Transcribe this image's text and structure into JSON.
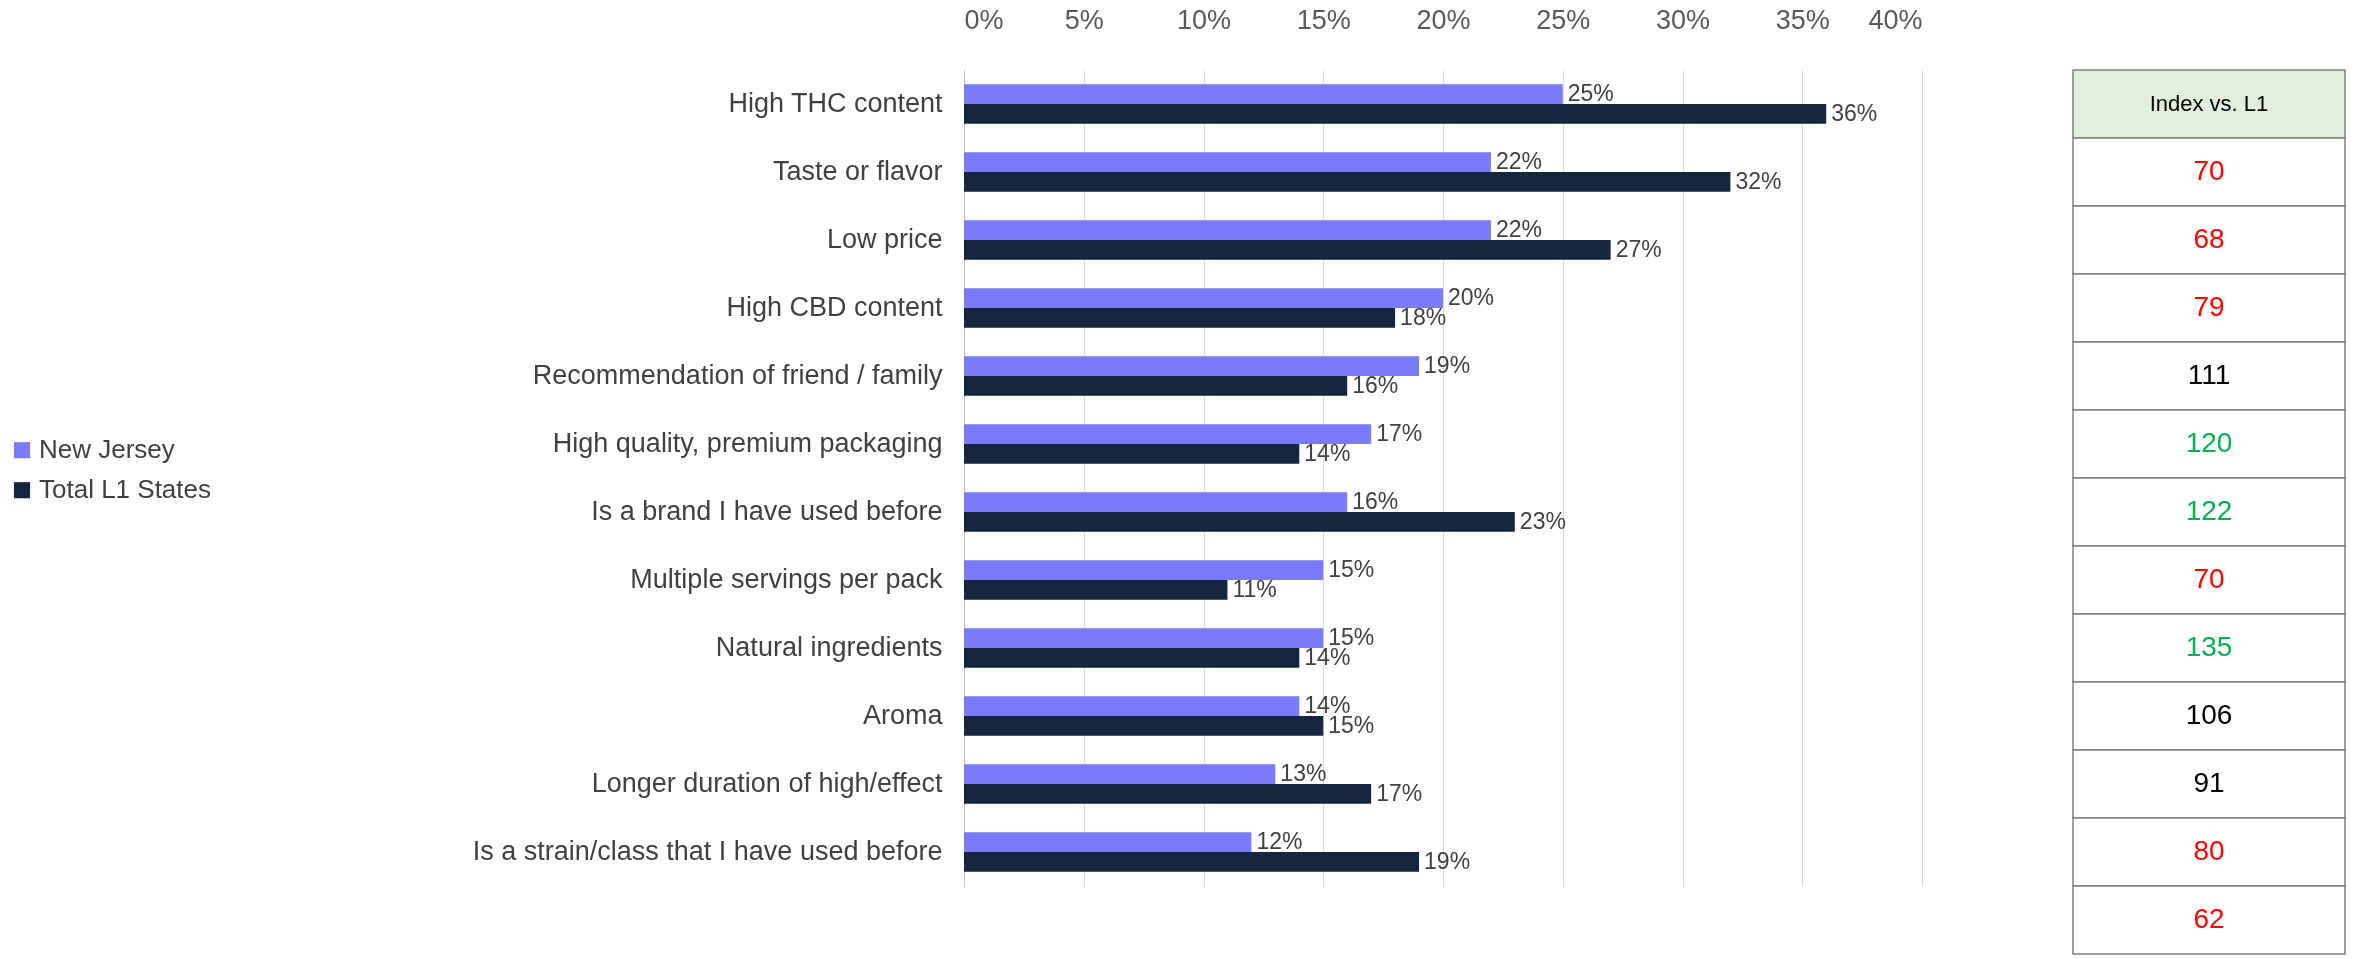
{
  "chart_data": [
    {
      "type": "bar",
      "orientation": "horizontal",
      "categories": [
        "High THC content",
        "Taste or flavor",
        "Low price",
        "High CBD content",
        "Recommendation of friend / family",
        "High quality, premium packaging",
        "Is a brand I have used before",
        "Multiple servings per pack",
        "Natural ingredients",
        "Aroma",
        "Longer duration of high/effect",
        "Is a strain/class that I have used before"
      ],
      "series": [
        {
          "name": "New Jersey",
          "color": "#7b7bf7",
          "values": [
            25,
            22,
            22,
            20,
            19,
            17,
            16,
            15,
            15,
            14,
            13,
            12
          ],
          "value_labels": [
            "25%",
            "22%",
            "22%",
            "20%",
            "19%",
            "17%",
            "16%",
            "15%",
            "15%",
            "14%",
            "13%",
            "12%"
          ]
        },
        {
          "name": "Total L1 States",
          "color": "#172640",
          "values": [
            36,
            32,
            27,
            18,
            16,
            14,
            23,
            11,
            14,
            15,
            17,
            19
          ],
          "value_labels": [
            "36%",
            "32%",
            "27%",
            "18%",
            "16%",
            "14%",
            "23%",
            "11%",
            "14%",
            "15%",
            "17%",
            "19%"
          ]
        }
      ],
      "xlim": [
        0,
        40
      ],
      "xticks": [
        {
          "value": 0,
          "label": "0%"
        },
        {
          "value": 5,
          "label": "5%"
        },
        {
          "value": 10,
          "label": "10%"
        },
        {
          "value": 15,
          "label": "15%"
        },
        {
          "value": 20,
          "label": "20%"
        },
        {
          "value": 25,
          "label": "25%"
        },
        {
          "value": 30,
          "label": "30%"
        },
        {
          "value": 35,
          "label": "35%"
        },
        {
          "value": 40,
          "label": "40%"
        }
      ],
      "grid": "x",
      "legend": "left"
    },
    {
      "type": "other",
      "title": "Index vs. L1",
      "data_labels": true,
      "values": [
        70,
        68,
        79,
        111,
        120,
        122,
        70,
        135,
        106,
        91,
        80,
        62
      ],
      "colors": [
        "#ff0000",
        "#ff0000",
        "#ff0000",
        "#000000",
        "#00b050",
        "#00b050",
        "#ff0000",
        "#00b050",
        "#000000",
        "#000000",
        "#ff0000",
        "#ff0000"
      ]
    }
  ]
}
